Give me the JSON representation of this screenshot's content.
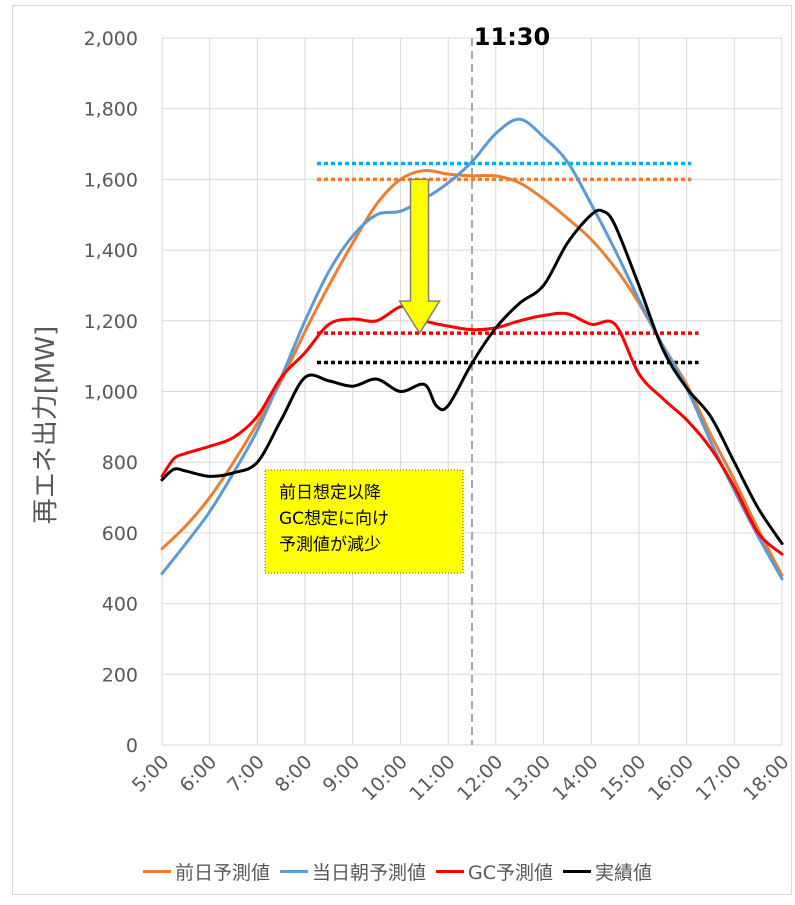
{
  "chart_data": {
    "type": "line",
    "title": "",
    "xlabel": "",
    "ylabel": "再エネ出力[MW]",
    "ylim": [
      0,
      2000
    ],
    "yticks": [
      0,
      200,
      400,
      600,
      800,
      1000,
      1200,
      1400,
      1600,
      1800,
      2000
    ],
    "ytick_labels": [
      "0",
      "200",
      "400",
      "600",
      "800",
      "1,000",
      "1,200",
      "1,400",
      "1,600",
      "1,800",
      "2,000"
    ],
    "xlim": [
      5,
      18
    ],
    "xtick_labels": [
      "5:00",
      "6:00",
      "7:00",
      "8:00",
      "9:00",
      "10:00",
      "11:00",
      "12:00",
      "13:00",
      "14:00",
      "15:00",
      "16:00",
      "17:00",
      "18:00"
    ],
    "grid": true,
    "legend_position": "bottom",
    "series": [
      {
        "name": "前日予測値",
        "color": "#ed7d31",
        "x": [
          5,
          5.5,
          6,
          6.5,
          7,
          7.5,
          8,
          8.5,
          9,
          9.5,
          10,
          10.5,
          11,
          11.5,
          12,
          12.5,
          13,
          13.5,
          14,
          14.5,
          15,
          15.5,
          16,
          16.5,
          17,
          17.5,
          18
        ],
        "y": [
          555,
          620,
          700,
          800,
          910,
          1030,
          1170,
          1300,
          1420,
          1530,
          1600,
          1625,
          1615,
          1610,
          1610,
          1590,
          1545,
          1490,
          1430,
          1350,
          1250,
          1130,
          1020,
          880,
          750,
          610,
          480
        ]
      },
      {
        "name": "当日朝予測値",
        "color": "#5b9bd5",
        "x": [
          5,
          5.5,
          6,
          6.5,
          7,
          7.5,
          8,
          8.5,
          9,
          9.5,
          10,
          10.5,
          11,
          11.5,
          12,
          12.5,
          13,
          13.5,
          14,
          14.5,
          15,
          15.5,
          16,
          16.5,
          17,
          17.5,
          18
        ],
        "y": [
          485,
          570,
          660,
          770,
          890,
          1040,
          1200,
          1340,
          1440,
          1500,
          1510,
          1545,
          1590,
          1650,
          1730,
          1770,
          1720,
          1650,
          1530,
          1400,
          1260,
          1130,
          1010,
          860,
          720,
          590,
          470
        ]
      },
      {
        "name": "GC予測値",
        "color": "#ff0000",
        "x": [
          5,
          5.25,
          5.5,
          6,
          6.5,
          7,
          7.5,
          8,
          8.5,
          9,
          9.5,
          10,
          10.25,
          10.5,
          11,
          11.5,
          12,
          12.5,
          13,
          13.5,
          14,
          14.5,
          15,
          15.5,
          16,
          16.5,
          17,
          17.5,
          18
        ],
        "y": [
          760,
          810,
          825,
          845,
          870,
          930,
          1040,
          1110,
          1190,
          1205,
          1200,
          1240,
          1220,
          1200,
          1185,
          1175,
          1180,
          1200,
          1215,
          1220,
          1190,
          1190,
          1050,
          980,
          920,
          840,
          730,
          600,
          540
        ]
      },
      {
        "name": "実績値",
        "color": "#000000",
        "x": [
          5,
          5.25,
          5.5,
          6,
          6.5,
          7,
          7.5,
          8,
          8.5,
          9,
          9.5,
          10,
          10.5,
          10.75,
          11,
          11.5,
          12,
          12.5,
          13,
          13.5,
          14,
          14.25,
          14.5,
          15,
          15.5,
          16,
          16.5,
          17,
          17.5,
          18
        ],
        "y": [
          750,
          780,
          775,
          760,
          770,
          800,
          920,
          1040,
          1030,
          1015,
          1035,
          1000,
          1020,
          960,
          960,
          1080,
          1180,
          1250,
          1300,
          1420,
          1500,
          1510,
          1470,
          1300,
          1120,
          1010,
          930,
          800,
          670,
          570
        ]
      }
    ],
    "reference_lines": [
      {
        "color": "#00b0f0",
        "y": 1645,
        "x_start": 8.25,
        "x_end": 16.1
      },
      {
        "color": "#ed7d31",
        "y": 1600,
        "x_start": 8.25,
        "x_end": 16.1
      },
      {
        "color": "#ff0000",
        "y": 1165,
        "x_start": 8.25,
        "x_end": 16.25
      },
      {
        "color": "#000000",
        "y": 1082,
        "x_start": 8.25,
        "x_end": 16.25
      }
    ],
    "vertical_marker": {
      "x": 11.5,
      "label": "11:30",
      "color": "#a6a6a6"
    },
    "arrow": {
      "x": 10.4,
      "y_from": 1600,
      "y_to": 1165,
      "fill": "#ffff00",
      "stroke": "#808080"
    },
    "callout": {
      "lines": [
        "前日想定以降",
        "GC想定に向け",
        "予測値が減少"
      ],
      "fill": "#ffff00"
    }
  }
}
